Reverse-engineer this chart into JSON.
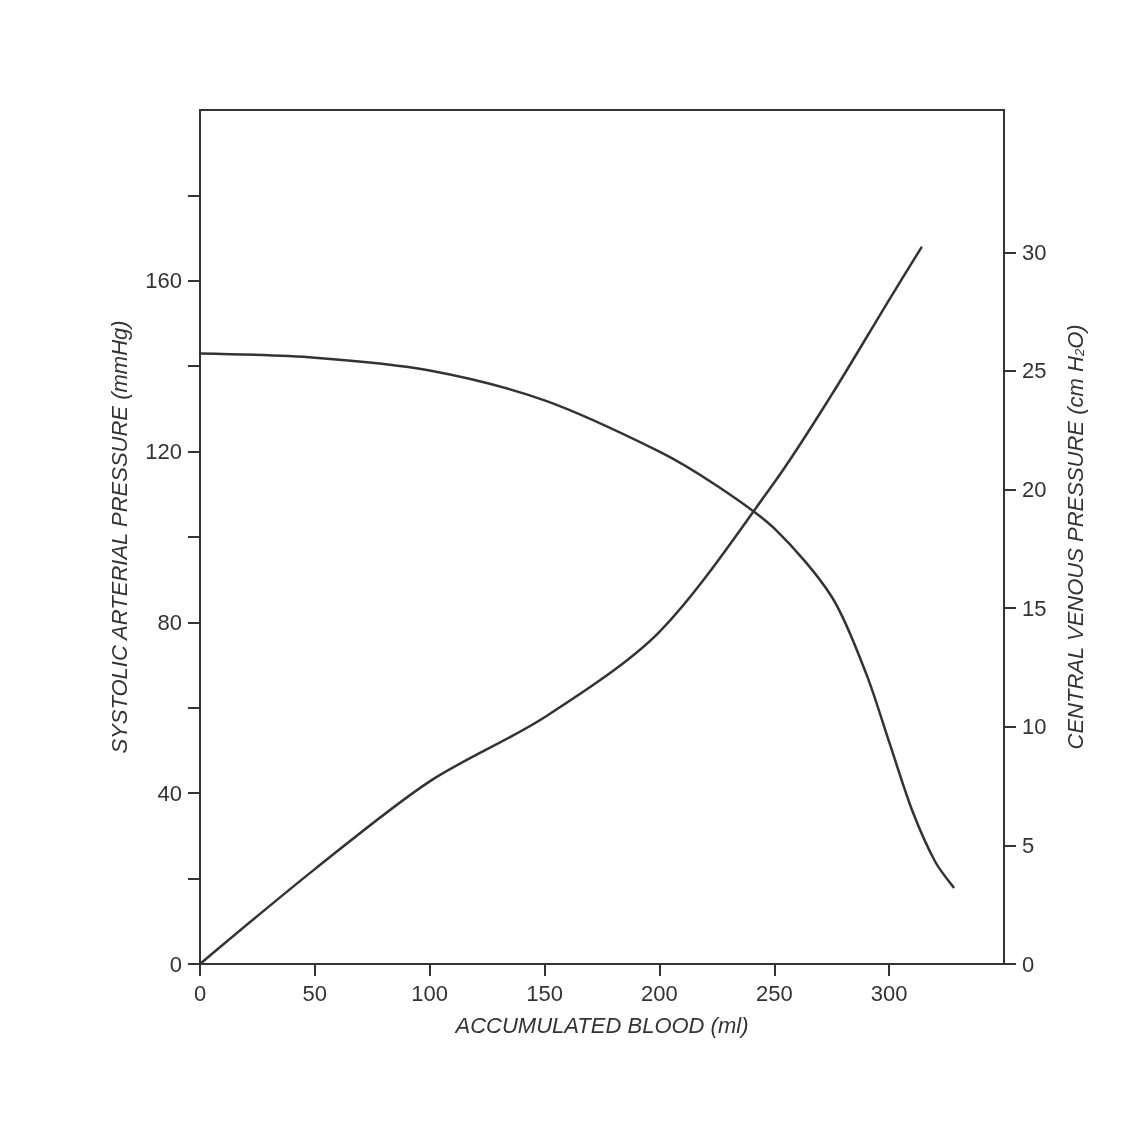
{
  "chart_data": {
    "type": "line",
    "xlabel": "ACCUMULATED BLOOD (ml)",
    "ylabel": "SYSTOLIC ARTERIAL PRESSURE (mmHg)",
    "y2label": "CENTRAL VENOUS PRESSURE (cm H$_{2}$O)",
    "xlim": [
      0,
      350
    ],
    "xticks": [
      0,
      50,
      100,
      150,
      200,
      250,
      300
    ],
    "ylim": [
      0,
      200
    ],
    "yticks": [
      0,
      {
        "value": 20,
        "label": null
      },
      40,
      {
        "value": 60,
        "label": null
      },
      80,
      {
        "value": 100,
        "label": null
      },
      120,
      {
        "value": 140,
        "label": null
      },
      160,
      {
        "value": 180,
        "label": null
      }
    ],
    "y2lim": [
      0,
      36
    ],
    "y2ticks": [
      0,
      5,
      10,
      15,
      20,
      25,
      30
    ],
    "grid": false,
    "marker": "none",
    "line_style": "solid",
    "series": [
      {
        "color": "#333333",
        "x": [
          0,
          50,
          100,
          150,
          200,
          225,
          250,
          275,
          290,
          300,
          310,
          320,
          328
        ],
        "values": [
          143,
          142,
          139,
          132,
          120,
          112,
          102,
          86,
          68,
          52,
          36,
          24,
          18
        ]
      },
      {
        "color": "#333333",
        "axis": "y2",
        "x": [
          0,
          50,
          100,
          150,
          200,
          250,
          275,
          300,
          314
        ],
        "values": [
          0,
          4,
          7.7,
          10.4,
          14,
          20.3,
          24,
          28,
          30.2
        ]
      }
    ]
  }
}
